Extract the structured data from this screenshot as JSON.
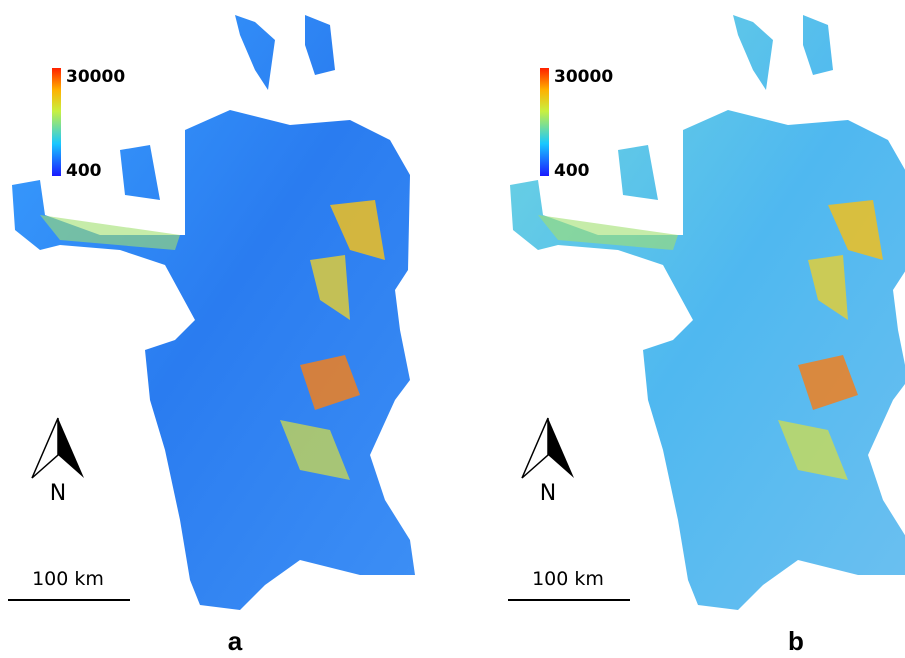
{
  "panels": [
    {
      "label": "a",
      "colorbar": {
        "max": "30000",
        "min": "400"
      },
      "north": "N",
      "scale": "100 km"
    },
    {
      "label": "b",
      "colorbar": {
        "max": "30000",
        "min": "400"
      },
      "north": "N",
      "scale": "100 km"
    }
  ]
}
